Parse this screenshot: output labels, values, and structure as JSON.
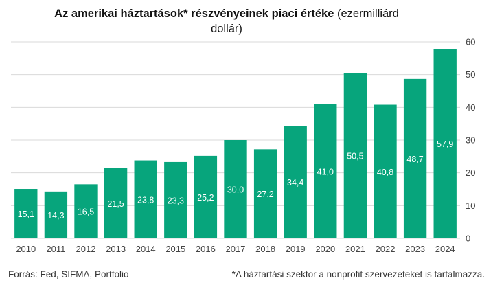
{
  "title": {
    "bold": "Az amerikai háztartások* részvényeinek piaci értéke",
    "rest": "(ezermilliárd dollár)"
  },
  "footer": {
    "source": "Forrás: Fed, SIFMA, Portfolio",
    "note": "*A háztartási szektor a nonprofit szervezeteket is tartalmazza."
  },
  "colors": {
    "bar": "#07a57c",
    "grid": "#d9d9d9",
    "axis_text": "#444444",
    "value_text": "#ffffff"
  },
  "chart_data": {
    "type": "bar",
    "categories": [
      "2010",
      "2011",
      "2012",
      "2013",
      "2014",
      "2015",
      "2016",
      "2017",
      "2018",
      "2019",
      "2020",
      "2021",
      "2022",
      "2023",
      "2024"
    ],
    "values": [
      15.1,
      14.3,
      16.5,
      21.5,
      23.8,
      23.3,
      25.2,
      30.0,
      27.2,
      34.4,
      41.0,
      50.5,
      40.8,
      48.7,
      57.9
    ],
    "value_labels": [
      "15,1",
      "14,3",
      "16,5",
      "21,5",
      "23,8",
      "23,3",
      "25,2",
      "30,0",
      "27,2",
      "34,4",
      "41,0",
      "50,5",
      "40,8",
      "48,7",
      "57,9"
    ],
    "yticks": [
      "0",
      "10",
      "20",
      "30",
      "40",
      "50",
      "60"
    ],
    "ylim": [
      0,
      60
    ],
    "grid": true,
    "y_axis_position": "right"
  }
}
